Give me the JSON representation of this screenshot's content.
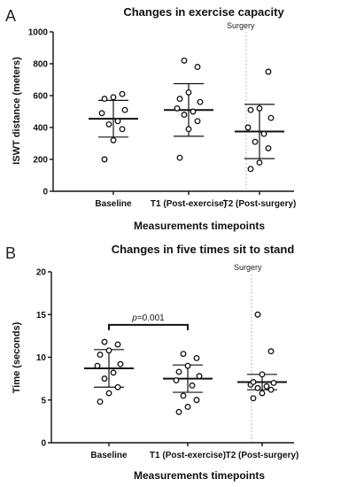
{
  "chart_data": [
    {
      "type": "scatter",
      "panel": "A",
      "title": "Changes in exercise capacity",
      "xlabel": "Measurements timepoints",
      "ylabel": "ISWT distance (meters)",
      "ylim": [
        0,
        1000
      ],
      "yticks": [
        0,
        200,
        400,
        600,
        800,
        1000
      ],
      "categories": [
        "Baseline",
        "T1 (Post-exercise)",
        "T2 (Post-surgery)"
      ],
      "points": [
        [
          200,
          320,
          390,
          420,
          440,
          490,
          510,
          580,
          590,
          610
        ],
        [
          210,
          390,
          440,
          480,
          500,
          520,
          560,
          580,
          620,
          780,
          820
        ],
        [
          140,
          180,
          270,
          310,
          360,
          400,
          460,
          510,
          520,
          750
        ]
      ],
      "mean": [
        455,
        510,
        375
      ],
      "sd": [
        115,
        165,
        170
      ],
      "annotation": "Surgery"
    },
    {
      "type": "scatter",
      "panel": "B",
      "title": "Changes in five times sit to stand",
      "xlabel": "Measurements timepoints",
      "ylabel": "Time (seconds)",
      "ylim": [
        0,
        20
      ],
      "yticks": [
        0,
        5,
        10,
        15,
        20
      ],
      "categories": [
        "Baseline",
        "T1 (Post-exercise)",
        "T2 (Post-surgery)"
      ],
      "points": [
        [
          4.8,
          5.8,
          6.5,
          7.5,
          8.2,
          9.0,
          9.2,
          10.3,
          10.8,
          11.5,
          11.8
        ],
        [
          3.6,
          4.2,
          5.0,
          5.5,
          6.7,
          7.3,
          7.8,
          8.3,
          9.0,
          9.9,
          10.4
        ],
        [
          5.2,
          5.8,
          6.2,
          6.4,
          6.6,
          6.8,
          7.0,
          7.1,
          8.0,
          10.7,
          15.0
        ]
      ],
      "mean": [
        8.7,
        7.5,
        7.1
      ],
      "sd": [
        2.2,
        1.6,
        0.9
      ],
      "comparison": {
        "from": 0,
        "to": 1,
        "p_symbol": "p",
        "p_value": "=0.001",
        "y": 13.8
      },
      "annotation": "Surgery"
    }
  ]
}
